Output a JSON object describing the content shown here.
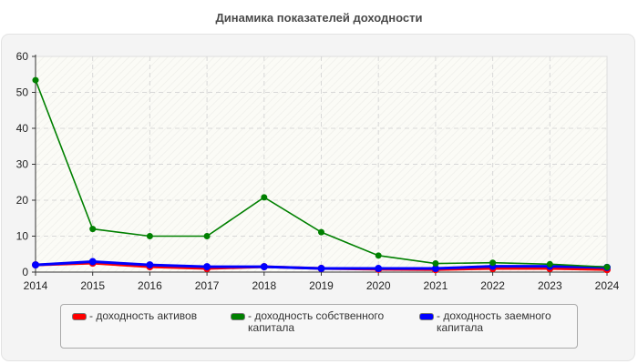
{
  "title": "Динамика показателей доходности",
  "chart_data": {
    "type": "line",
    "title": "Динамика показателей доходности",
    "xlabel": "",
    "ylabel": "",
    "x": [
      "2014",
      "2015",
      "2016",
      "2017",
      "2018",
      "2019",
      "2020",
      "2021",
      "2022",
      "2023",
      "2024"
    ],
    "ylim": [
      0,
      60
    ],
    "yticks": [
      0,
      10,
      20,
      30,
      40,
      50,
      60
    ],
    "grid": true,
    "legend_position": "bottom",
    "series": [
      {
        "name": "доходность активов",
        "color": "#ff0000",
        "values": [
          2.0,
          2.5,
          1.5,
          1.0,
          1.5,
          1.0,
          0.8,
          0.7,
          1.0,
          1.0,
          0.7
        ]
      },
      {
        "name": "доходность собственного капитала",
        "color": "#008000",
        "values": [
          53.4,
          12.0,
          10.0,
          10.0,
          20.8,
          11.1,
          4.6,
          2.4,
          2.6,
          2.2,
          1.4
        ]
      },
      {
        "name": "доходность заемного капитала",
        "color": "#0000ff",
        "values": [
          2.0,
          2.9,
          2.0,
          1.5,
          1.5,
          1.0,
          1.0,
          1.0,
          1.6,
          1.6,
          1.3
        ]
      }
    ]
  },
  "legend": [
    {
      "label": "- доходность активов",
      "color": "#ff0000"
    },
    {
      "label": "- доходность собственного капитала",
      "color": "#008000"
    },
    {
      "label": "- доходность заемного капитала",
      "color": "#0000ff"
    }
  ]
}
